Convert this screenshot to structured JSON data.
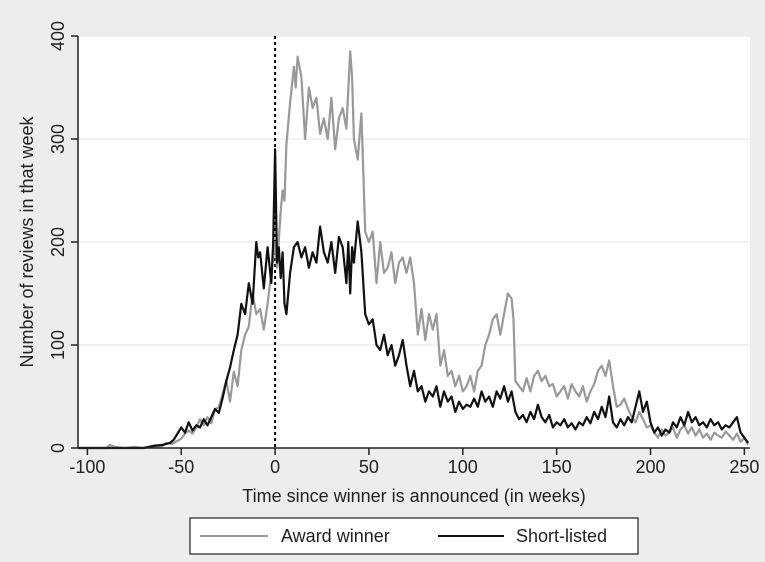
{
  "chart_data": {
    "type": "line",
    "title": "",
    "xlabel": "Time since winner is announced (in weeks)",
    "ylabel": "Number of reviews in that week",
    "xlim": [
      -105,
      253
    ],
    "ylim": [
      0,
      400
    ],
    "x_ticks": [
      -100,
      -50,
      0,
      50,
      100,
      150,
      200,
      250
    ],
    "y_ticks": [
      0,
      100,
      200,
      300,
      400
    ],
    "grid": "horizontal",
    "legend_position": "bottom",
    "reference_line": {
      "x": 0,
      "style": "dotted"
    },
    "series": [
      {
        "name": "Award winner",
        "color": "#999999",
        "points": [
          [
            -105,
            0
          ],
          [
            -90,
            0
          ],
          [
            -88,
            3
          ],
          [
            -85,
            1
          ],
          [
            -80,
            0
          ],
          [
            -75,
            1
          ],
          [
            -70,
            0
          ],
          [
            -65,
            1
          ],
          [
            -60,
            2
          ],
          [
            -58,
            5
          ],
          [
            -55,
            4
          ],
          [
            -52,
            7
          ],
          [
            -50,
            9
          ],
          [
            -48,
            14
          ],
          [
            -46,
            17
          ],
          [
            -44,
            14
          ],
          [
            -42,
            20
          ],
          [
            -40,
            28
          ],
          [
            -38,
            22
          ],
          [
            -36,
            30
          ],
          [
            -34,
            24
          ],
          [
            -32,
            37
          ],
          [
            -30,
            40
          ],
          [
            -28,
            52
          ],
          [
            -26,
            66
          ],
          [
            -24,
            45
          ],
          [
            -22,
            74
          ],
          [
            -20,
            60
          ],
          [
            -18,
            95
          ],
          [
            -16,
            110
          ],
          [
            -14,
            118
          ],
          [
            -12,
            150
          ],
          [
            -10,
            130
          ],
          [
            -8,
            135
          ],
          [
            -6,
            115
          ],
          [
            -4,
            140
          ],
          [
            -2,
            170
          ],
          [
            0,
            200
          ],
          [
            1,
            175
          ],
          [
            3,
            230
          ],
          [
            4,
            250
          ],
          [
            5,
            240
          ],
          [
            6,
            295
          ],
          [
            8,
            335
          ],
          [
            10,
            370
          ],
          [
            11,
            350
          ],
          [
            12,
            380
          ],
          [
            14,
            360
          ],
          [
            16,
            300
          ],
          [
            18,
            350
          ],
          [
            20,
            330
          ],
          [
            22,
            340
          ],
          [
            24,
            305
          ],
          [
            26,
            320
          ],
          [
            28,
            300
          ],
          [
            30,
            340
          ],
          [
            32,
            290
          ],
          [
            34,
            320
          ],
          [
            36,
            330
          ],
          [
            38,
            310
          ],
          [
            40,
            385
          ],
          [
            41,
            360
          ],
          [
            42,
            300
          ],
          [
            44,
            280
          ],
          [
            46,
            325
          ],
          [
            48,
            210
          ],
          [
            50,
            200
          ],
          [
            52,
            210
          ],
          [
            54,
            160
          ],
          [
            56,
            200
          ],
          [
            58,
            170
          ],
          [
            60,
            175
          ],
          [
            62,
            190
          ],
          [
            64,
            160
          ],
          [
            66,
            180
          ],
          [
            68,
            185
          ],
          [
            70,
            170
          ],
          [
            72,
            185
          ],
          [
            74,
            160
          ],
          [
            76,
            110
          ],
          [
            78,
            135
          ],
          [
            80,
            105
          ],
          [
            82,
            130
          ],
          [
            84,
            115
          ],
          [
            86,
            130
          ],
          [
            88,
            80
          ],
          [
            90,
            95
          ],
          [
            92,
            70
          ],
          [
            94,
            75
          ],
          [
            96,
            60
          ],
          [
            98,
            70
          ],
          [
            100,
            55
          ],
          [
            102,
            60
          ],
          [
            104,
            70
          ],
          [
            106,
            55
          ],
          [
            108,
            75
          ],
          [
            110,
            80
          ],
          [
            112,
            100
          ],
          [
            114,
            110
          ],
          [
            116,
            125
          ],
          [
            118,
            130
          ],
          [
            120,
            110
          ],
          [
            122,
            130
          ],
          [
            124,
            150
          ],
          [
            126,
            145
          ],
          [
            127,
            125
          ],
          [
            128,
            65
          ],
          [
            130,
            60
          ],
          [
            132,
            55
          ],
          [
            134,
            68
          ],
          [
            136,
            55
          ],
          [
            138,
            70
          ],
          [
            140,
            75
          ],
          [
            142,
            65
          ],
          [
            144,
            70
          ],
          [
            146,
            60
          ],
          [
            148,
            62
          ],
          [
            150,
            50
          ],
          [
            152,
            55
          ],
          [
            154,
            60
          ],
          [
            156,
            48
          ],
          [
            158,
            62
          ],
          [
            160,
            55
          ],
          [
            162,
            50
          ],
          [
            164,
            60
          ],
          [
            166,
            45
          ],
          [
            168,
            55
          ],
          [
            170,
            62
          ],
          [
            172,
            75
          ],
          [
            174,
            80
          ],
          [
            176,
            70
          ],
          [
            178,
            85
          ],
          [
            180,
            60
          ],
          [
            182,
            40
          ],
          [
            184,
            42
          ],
          [
            186,
            48
          ],
          [
            188,
            38
          ],
          [
            190,
            30
          ],
          [
            192,
            25
          ],
          [
            194,
            35
          ],
          [
            196,
            28
          ],
          [
            198,
            20
          ],
          [
            200,
            22
          ],
          [
            202,
            15
          ],
          [
            204,
            10
          ],
          [
            206,
            18
          ],
          [
            208,
            12
          ],
          [
            210,
            15
          ],
          [
            212,
            20
          ],
          [
            214,
            10
          ],
          [
            216,
            18
          ],
          [
            218,
            22
          ],
          [
            220,
            14
          ],
          [
            222,
            20
          ],
          [
            224,
            12
          ],
          [
            226,
            18
          ],
          [
            228,
            10
          ],
          [
            230,
            14
          ],
          [
            232,
            8
          ],
          [
            234,
            15
          ],
          [
            236,
            12
          ],
          [
            238,
            10
          ],
          [
            240,
            16
          ],
          [
            242,
            12
          ],
          [
            244,
            8
          ],
          [
            246,
            14
          ],
          [
            248,
            6
          ],
          [
            250,
            10
          ],
          [
            252,
            3
          ]
        ]
      },
      {
        "name": "Short-listed",
        "color": "#111111",
        "points": [
          [
            -105,
            0
          ],
          [
            -70,
            0
          ],
          [
            -65,
            2
          ],
          [
            -60,
            3
          ],
          [
            -56,
            5
          ],
          [
            -54,
            8
          ],
          [
            -52,
            14
          ],
          [
            -50,
            20
          ],
          [
            -48,
            15
          ],
          [
            -46,
            25
          ],
          [
            -44,
            17
          ],
          [
            -42,
            22
          ],
          [
            -40,
            20
          ],
          [
            -38,
            28
          ],
          [
            -36,
            22
          ],
          [
            -34,
            30
          ],
          [
            -32,
            38
          ],
          [
            -30,
            34
          ],
          [
            -28,
            48
          ],
          [
            -26,
            65
          ],
          [
            -24,
            78
          ],
          [
            -22,
            95
          ],
          [
            -20,
            110
          ],
          [
            -18,
            140
          ],
          [
            -16,
            130
          ],
          [
            -14,
            160
          ],
          [
            -12,
            140
          ],
          [
            -10,
            200
          ],
          [
            -9,
            185
          ],
          [
            -8,
            190
          ],
          [
            -6,
            155
          ],
          [
            -4,
            195
          ],
          [
            -2,
            160
          ],
          [
            -1,
            200
          ],
          [
            0,
            290
          ],
          [
            1,
            180
          ],
          [
            2,
            195
          ],
          [
            3,
            165
          ],
          [
            4,
            190
          ],
          [
            5,
            140
          ],
          [
            6,
            130
          ],
          [
            8,
            170
          ],
          [
            10,
            195
          ],
          [
            12,
            200
          ],
          [
            14,
            185
          ],
          [
            16,
            195
          ],
          [
            18,
            175
          ],
          [
            20,
            190
          ],
          [
            22,
            180
          ],
          [
            24,
            215
          ],
          [
            26,
            190
          ],
          [
            28,
            180
          ],
          [
            30,
            200
          ],
          [
            32,
            170
          ],
          [
            34,
            205
          ],
          [
            36,
            195
          ],
          [
            38,
            160
          ],
          [
            39,
            200
          ],
          [
            40,
            150
          ],
          [
            41,
            195
          ],
          [
            42,
            180
          ],
          [
            44,
            220
          ],
          [
            46,
            190
          ],
          [
            48,
            130
          ],
          [
            50,
            120
          ],
          [
            52,
            125
          ],
          [
            54,
            100
          ],
          [
            56,
            95
          ],
          [
            58,
            110
          ],
          [
            60,
            90
          ],
          [
            62,
            100
          ],
          [
            64,
            80
          ],
          [
            66,
            90
          ],
          [
            68,
            105
          ],
          [
            70,
            80
          ],
          [
            72,
            60
          ],
          [
            74,
            75
          ],
          [
            76,
            55
          ],
          [
            78,
            60
          ],
          [
            80,
            45
          ],
          [
            82,
            55
          ],
          [
            84,
            50
          ],
          [
            86,
            60
          ],
          [
            88,
            40
          ],
          [
            90,
            55
          ],
          [
            92,
            45
          ],
          [
            94,
            50
          ],
          [
            96,
            35
          ],
          [
            98,
            45
          ],
          [
            100,
            38
          ],
          [
            102,
            42
          ],
          [
            104,
            40
          ],
          [
            106,
            48
          ],
          [
            108,
            40
          ],
          [
            110,
            55
          ],
          [
            112,
            45
          ],
          [
            114,
            50
          ],
          [
            116,
            40
          ],
          [
            118,
            55
          ],
          [
            120,
            48
          ],
          [
            122,
            60
          ],
          [
            124,
            45
          ],
          [
            126,
            55
          ],
          [
            128,
            35
          ],
          [
            130,
            28
          ],
          [
            132,
            32
          ],
          [
            134,
            25
          ],
          [
            136,
            35
          ],
          [
            138,
            28
          ],
          [
            140,
            42
          ],
          [
            142,
            30
          ],
          [
            144,
            25
          ],
          [
            146,
            32
          ],
          [
            148,
            20
          ],
          [
            150,
            25
          ],
          [
            152,
            22
          ],
          [
            154,
            28
          ],
          [
            156,
            20
          ],
          [
            158,
            24
          ],
          [
            160,
            18
          ],
          [
            162,
            25
          ],
          [
            164,
            22
          ],
          [
            166,
            30
          ],
          [
            168,
            24
          ],
          [
            170,
            35
          ],
          [
            172,
            28
          ],
          [
            174,
            40
          ],
          [
            176,
            30
          ],
          [
            178,
            50
          ],
          [
            180,
            25
          ],
          [
            182,
            20
          ],
          [
            184,
            28
          ],
          [
            186,
            22
          ],
          [
            188,
            30
          ],
          [
            190,
            25
          ],
          [
            192,
            40
          ],
          [
            194,
            55
          ],
          [
            196,
            35
          ],
          [
            198,
            45
          ],
          [
            200,
            25
          ],
          [
            202,
            15
          ],
          [
            204,
            20
          ],
          [
            206,
            12
          ],
          [
            208,
            18
          ],
          [
            210,
            15
          ],
          [
            212,
            25
          ],
          [
            214,
            20
          ],
          [
            216,
            30
          ],
          [
            218,
            22
          ],
          [
            220,
            35
          ],
          [
            222,
            25
          ],
          [
            224,
            30
          ],
          [
            226,
            22
          ],
          [
            228,
            25
          ],
          [
            230,
            20
          ],
          [
            232,
            28
          ],
          [
            234,
            22
          ],
          [
            236,
            25
          ],
          [
            238,
            18
          ],
          [
            240,
            22
          ],
          [
            242,
            20
          ],
          [
            244,
            25
          ],
          [
            246,
            30
          ],
          [
            248,
            15
          ],
          [
            250,
            10
          ],
          [
            252,
            5
          ]
        ]
      }
    ]
  }
}
